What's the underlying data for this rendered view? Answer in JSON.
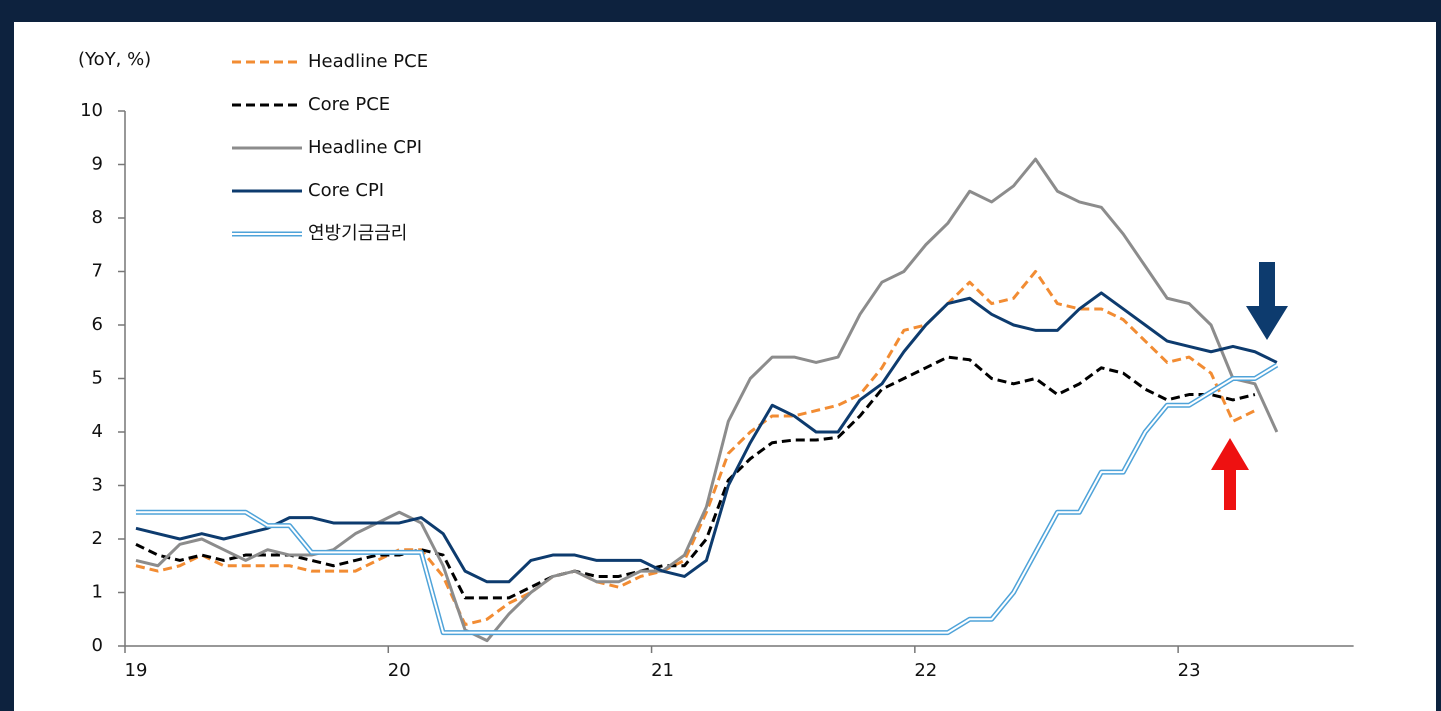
{
  "chart_data": {
    "type": "line",
    "ylabel": "(YoY, %)",
    "categories": [
      "19",
      null,
      null,
      null,
      null,
      null,
      null,
      null,
      null,
      null,
      null,
      null,
      "20",
      null,
      null,
      null,
      null,
      null,
      null,
      null,
      null,
      null,
      null,
      null,
      "21",
      null,
      null,
      null,
      null,
      null,
      null,
      null,
      null,
      null,
      null,
      null,
      "22",
      null,
      null,
      null,
      null,
      null,
      null,
      null,
      null,
      null,
      null,
      null,
      "23",
      null,
      null,
      null,
      null,
      null,
      null,
      null
    ],
    "ylim": [
      0,
      10
    ],
    "yticks": [
      0,
      1,
      2,
      3,
      4,
      5,
      6,
      7,
      8,
      9,
      10
    ],
    "grid": false,
    "legend": "top-left",
    "series": [
      {
        "name": "Headline PCE",
        "color": "#f28c33",
        "style": "dashed",
        "values": [
          1.5,
          1.4,
          1.5,
          1.7,
          1.5,
          1.5,
          1.5,
          1.5,
          1.4,
          1.4,
          1.4,
          1.6,
          1.8,
          1.8,
          1.3,
          0.4,
          0.5,
          0.8,
          1.0,
          1.3,
          1.4,
          1.2,
          1.1,
          1.3,
          1.4,
          1.6,
          2.5,
          3.6,
          4.0,
          4.3,
          4.3,
          4.4,
          4.5,
          4.7,
          5.2,
          5.9,
          6.0,
          6.4,
          6.8,
          6.4,
          6.5,
          7.0,
          6.4,
          6.3,
          6.3,
          6.1,
          5.7,
          5.3,
          5.4,
          5.1,
          4.2,
          4.4,
          null,
          null,
          null,
          null
        ]
      },
      {
        "name": "Core PCE",
        "color": "#000000",
        "style": "dashed",
        "values": [
          1.9,
          1.7,
          1.6,
          1.7,
          1.6,
          1.7,
          1.7,
          1.7,
          1.6,
          1.5,
          1.6,
          1.7,
          1.7,
          1.8,
          1.7,
          0.9,
          0.9,
          0.9,
          1.1,
          1.3,
          1.4,
          1.3,
          1.3,
          1.4,
          1.5,
          1.5,
          2.0,
          3.1,
          3.5,
          3.8,
          3.85,
          3.85,
          3.9,
          4.3,
          4.8,
          5.0,
          5.2,
          5.4,
          5.35,
          5.0,
          4.9,
          5.0,
          4.7,
          4.9,
          5.2,
          5.1,
          4.8,
          4.6,
          4.7,
          4.7,
          4.6,
          4.7,
          null,
          null,
          null,
          null
        ]
      },
      {
        "name": "Headline CPI",
        "color": "#8c8c8c",
        "style": "solid",
        "values": [
          1.6,
          1.5,
          1.9,
          2.0,
          1.8,
          1.6,
          1.8,
          1.7,
          1.7,
          1.8,
          2.1,
          2.3,
          2.5,
          2.3,
          1.5,
          0.3,
          0.1,
          0.6,
          1.0,
          1.3,
          1.4,
          1.2,
          1.2,
          1.4,
          1.4,
          1.7,
          2.6,
          4.2,
          5.0,
          5.4,
          5.4,
          5.3,
          5.4,
          6.2,
          6.8,
          7.0,
          7.5,
          7.9,
          8.5,
          8.3,
          8.6,
          9.1,
          8.5,
          8.3,
          8.2,
          7.7,
          7.1,
          6.5,
          6.4,
          6.0,
          5.0,
          4.9,
          4.0,
          null,
          null,
          null
        ]
      },
      {
        "name": "Core CPI",
        "color": "#0d3b6e",
        "style": "solid",
        "values": [
          2.2,
          2.1,
          2.0,
          2.1,
          2.0,
          2.1,
          2.2,
          2.4,
          2.4,
          2.3,
          2.3,
          2.3,
          2.3,
          2.4,
          2.1,
          1.4,
          1.2,
          1.2,
          1.6,
          1.7,
          1.7,
          1.6,
          1.6,
          1.6,
          1.4,
          1.3,
          1.6,
          3.0,
          3.8,
          4.5,
          4.3,
          4.0,
          4.0,
          4.6,
          4.9,
          5.5,
          6.0,
          6.4,
          6.5,
          6.2,
          6.0,
          5.9,
          5.9,
          6.3,
          6.6,
          6.3,
          6.0,
          5.7,
          5.6,
          5.5,
          5.6,
          5.5,
          5.3,
          null,
          null,
          null
        ]
      },
      {
        "name": "연방기금금리",
        "color": "#4fa3d9",
        "style": "double",
        "values": [
          2.5,
          2.5,
          2.5,
          2.5,
          2.5,
          2.5,
          2.25,
          2.25,
          1.75,
          1.75,
          1.75,
          1.75,
          1.75,
          1.75,
          0.25,
          0.25,
          0.25,
          0.25,
          0.25,
          0.25,
          0.25,
          0.25,
          0.25,
          0.25,
          0.25,
          0.25,
          0.25,
          0.25,
          0.25,
          0.25,
          0.25,
          0.25,
          0.25,
          0.25,
          0.25,
          0.25,
          0.25,
          0.25,
          0.5,
          0.5,
          1.0,
          1.75,
          2.5,
          2.5,
          3.25,
          3.25,
          4.0,
          4.5,
          4.5,
          4.75,
          5.0,
          5.0,
          5.25,
          null,
          null,
          null
        ]
      }
    ]
  }
}
